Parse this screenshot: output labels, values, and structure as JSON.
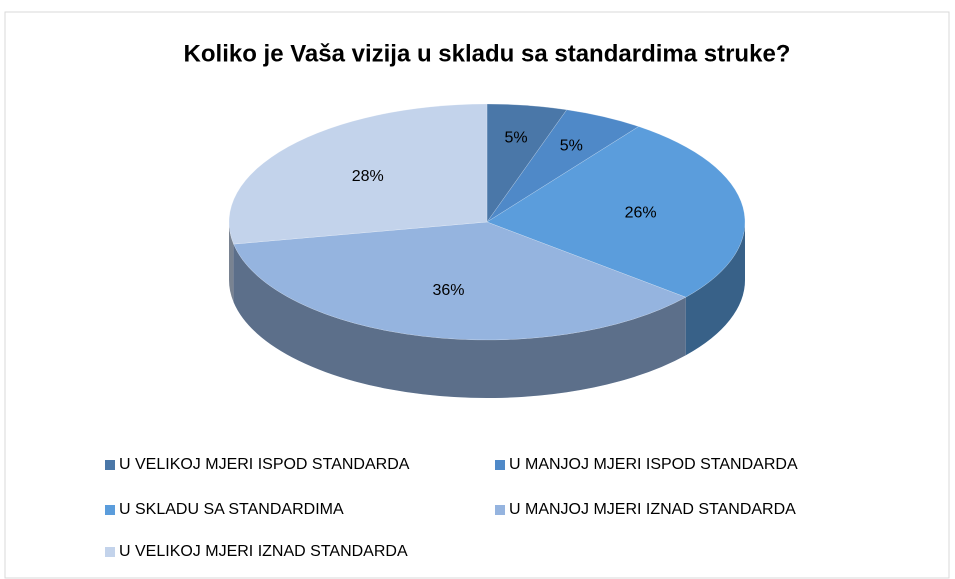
{
  "chart_data": {
    "type": "pie",
    "title": "Koliko je Vaša vizija u skladu sa standardima struke?",
    "categories": [
      "U VELIKOJ MJERI ISPOD STANDARDA",
      "U MANJOJ MJERI ISPOD STANDARDA",
      "U SKLADU SA STANDARDIMA",
      "U MANJOJ MJERI IZNAD STANDARDA",
      "U VELIKOJ MJERI IZNAD STANDARDA"
    ],
    "values": [
      5,
      5,
      26,
      36,
      28
    ],
    "value_labels": [
      "5%",
      "5%",
      "26%",
      "36%",
      "28%"
    ],
    "colors": [
      "#4a77a8",
      "#4f89c8",
      "#5b9ddc",
      "#95b4df",
      "#c3d3eb"
    ],
    "legend": "bottom"
  }
}
